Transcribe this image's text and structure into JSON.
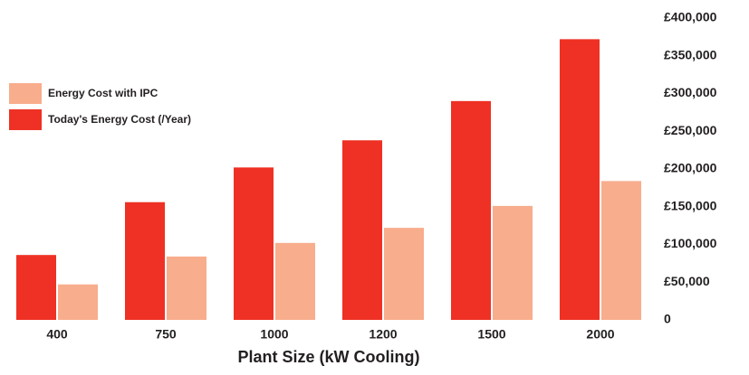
{
  "chart_data": {
    "type": "bar",
    "x_label": "Plant Size (kW Cooling)",
    "categories": [
      "400",
      "750",
      "1000",
      "1200",
      "1500",
      "2000"
    ],
    "series": [
      {
        "name": "Today's Energy Cost (/Year)",
        "color": "#ee3124",
        "values": [
          86000,
          156000,
          202000,
          238000,
          290000,
          372000
        ]
      },
      {
        "name": "Energy Cost with IPC",
        "color": "#f8ad8d",
        "values": [
          47000,
          84000,
          102000,
          122000,
          151000,
          184000
        ]
      }
    ],
    "ylim": [
      0,
      400000
    ],
    "yticks": [
      0,
      {
        "value": 50000,
        "label": "£50,000"
      },
      {
        "value": 100000,
        "label": "£100,000"
      },
      {
        "value": 150000,
        "label": "£150,000"
      },
      {
        "value": 200000,
        "label": "£200,000"
      },
      {
        "value": 250000,
        "label": "£250,000"
      },
      {
        "value": 300000,
        "label": "£300,000"
      },
      {
        "value": 350000,
        "label": "£350,000"
      },
      {
        "value": 400000,
        "label": "£400,000"
      }
    ],
    "y_axis_side": "right",
    "legend": "left",
    "grid": false
  }
}
